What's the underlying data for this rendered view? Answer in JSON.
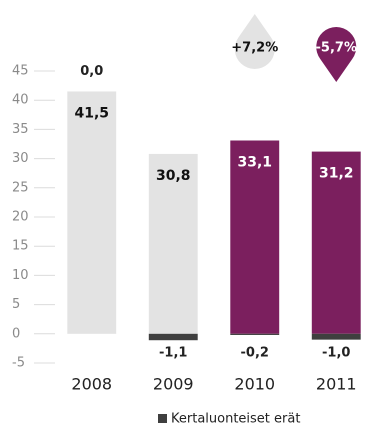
{
  "chart_data": {
    "type": "bar",
    "categories": [
      "2008",
      "2009",
      "2010",
      "2011"
    ],
    "series": [
      {
        "colors": [
          "#e3e3e3",
          "#e3e3e3",
          "#7b1f5e",
          "#7b1f5e"
        ],
        "values": [
          41.5,
          30.8,
          33.1,
          31.2
        ],
        "value_labels": [
          "41,5",
          "30,8",
          "33,1",
          "31,2"
        ]
      },
      {
        "name": "Kertaluonteiset erät",
        "color": "#3f3f3f",
        "values": [
          0.0,
          -1.1,
          -0.2,
          -1.0
        ],
        "value_labels": [
          "0,0",
          "-1,1",
          "-0,2",
          "-1,0"
        ]
      }
    ],
    "annotations": [
      {
        "text": "+7,2%",
        "color": "#e3e3e3"
      },
      {
        "text": "-5,7%",
        "color": "#7b1f5e"
      }
    ],
    "ylim": [
      -5,
      45
    ],
    "yticks": [
      -5,
      0,
      5,
      10,
      15,
      20,
      25,
      30,
      35,
      40,
      45
    ],
    "grid": true
  }
}
